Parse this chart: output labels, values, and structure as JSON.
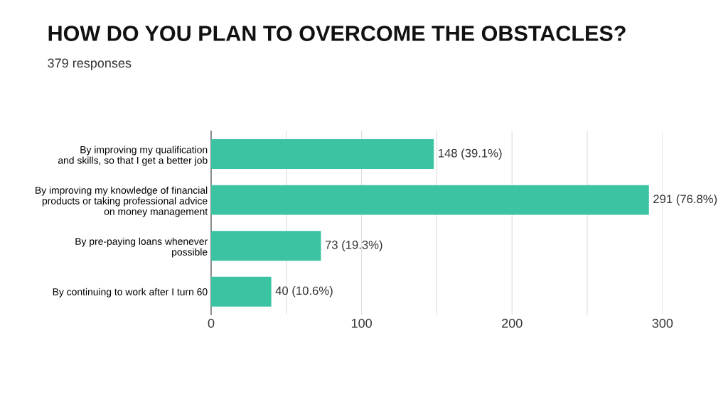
{
  "chart_data": {
    "type": "bar",
    "orientation": "horizontal",
    "title": "HOW DO YOU PLAN TO OVERCOME THE OBSTACLES?",
    "subtitle": "379 responses",
    "categories": [
      "By improving my qualification\nand skills, so that I get a better job",
      "By improving my knowledge of financial\nproducts or taking professional advice\non money management",
      "By pre-paying loans whenever\npossible",
      "By continuing to work after I turn 60"
    ],
    "values": [
      148,
      291,
      73,
      40
    ],
    "value_labels": [
      "148 (39.1%)",
      "291 (76.8%)",
      "73 (19.3%)",
      "40 (10.6%)"
    ],
    "color": "#3bc3a2",
    "xlim": [
      0,
      300
    ],
    "xticks": [
      0,
      {
        "value": 50,
        "label": null
      },
      100,
      {
        "value": 150,
        "label": null
      },
      200,
      {
        "value": 250,
        "label": null
      },
      300
    ],
    "grid": "x",
    "legend": false
  }
}
